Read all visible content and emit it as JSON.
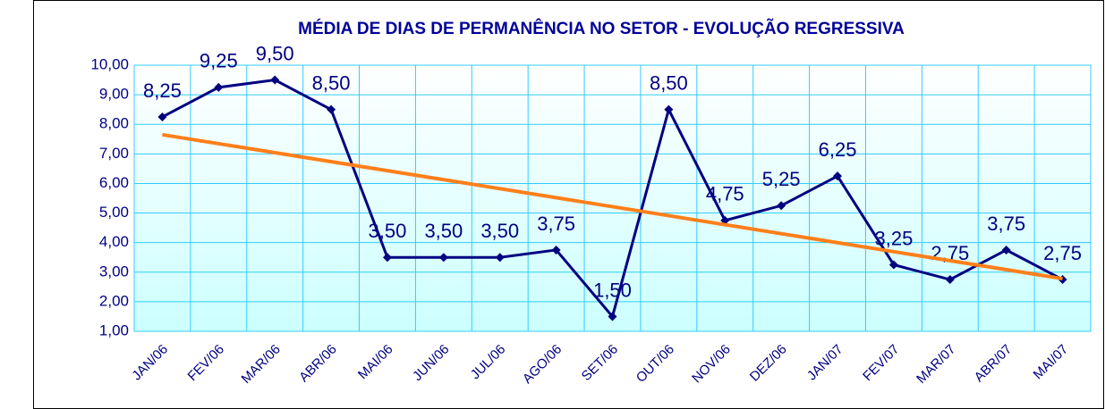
{
  "chart_data": {
    "type": "line",
    "title": "MÉDIA DE DIAS DE PERMANÊNCIA NO SETOR - EVOLUÇÃO REGRESSIVA",
    "categories": [
      "JAN/06",
      "FEV/06",
      "MAR/06",
      "ABR/06",
      "MAI/06",
      "JUN/06",
      "JUL/06",
      "AGO/06",
      "SET/06",
      "OUT/06",
      "NOV/06",
      "DEZ/06",
      "JAN/07",
      "FEV/07",
      "MAR/07",
      "ABR/07",
      "MAI/07"
    ],
    "series": [
      {
        "color": "#000080",
        "values": [
          8.25,
          9.25,
          9.5,
          8.5,
          3.5,
          3.5,
          3.5,
          3.75,
          1.5,
          8.5,
          4.75,
          5.25,
          6.25,
          3.25,
          2.75,
          3.75,
          2.75
        ],
        "value_labels": [
          "8,25",
          "9,25",
          "9,50",
          "8,50",
          "3,50",
          "3,50",
          "3,50",
          "3,75",
          "1,50",
          "8,50",
          "4,75",
          "5,25",
          "6,25",
          "3,25",
          "2,75",
          "3,75",
          "2,75"
        ]
      }
    ],
    "trend": {
      "color": "#ff7f1a",
      "values": [
        7.65,
        2.78
      ]
    },
    "ylim": [
      1,
      10
    ],
    "yticks": [
      {
        "value": 1,
        "label": "1,00"
      },
      {
        "value": 2,
        "label": "2,00"
      },
      {
        "value": 3,
        "label": "3,00"
      },
      {
        "value": 4,
        "label": "4,00"
      },
      {
        "value": 5,
        "label": "5,00"
      },
      {
        "value": 6,
        "label": "6,00"
      },
      {
        "value": 7,
        "label": "7,00"
      },
      {
        "value": 8,
        "label": "8,00"
      },
      {
        "value": 9,
        "label": "9,00"
      },
      {
        "value": 10,
        "label": "10,00"
      }
    ],
    "grid": true,
    "grid_color": "#33ccff"
  }
}
